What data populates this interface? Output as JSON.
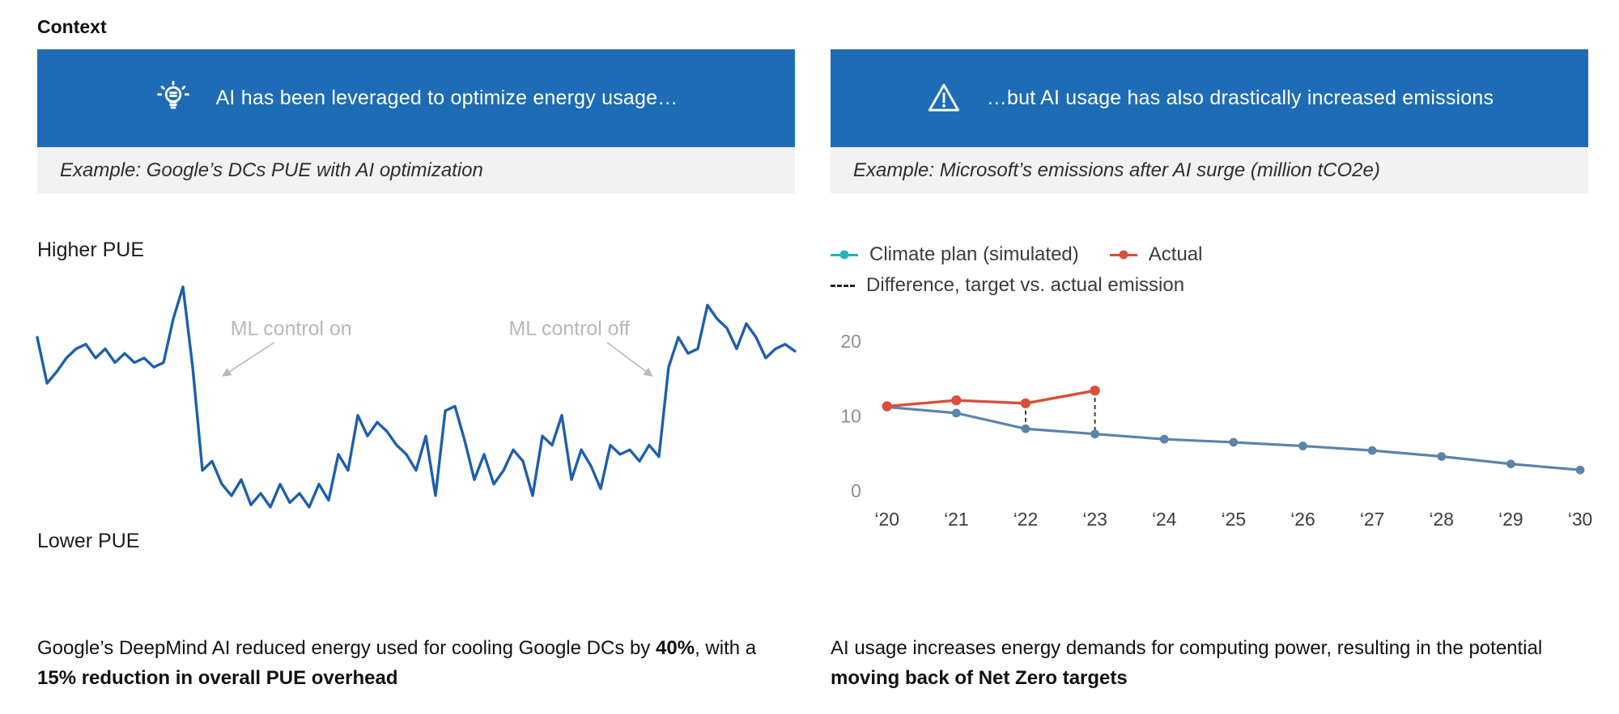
{
  "context_label": "Context",
  "colors": {
    "banner_blue": "#1e6cb5",
    "subtitle_gray": "#f2f2f2",
    "pue_line_blue": "#1d5fad",
    "plan_line_blue": "#5b84ab",
    "plan_legend_teal": "#27b4b4",
    "actual_red": "#d94f38",
    "annotation_gray": "#b8b8b8"
  },
  "left_panel": {
    "banner": "AI has been leveraged to optimize energy usage…",
    "banner_icon": "lightbulb-icon",
    "subtitle": "Example: Google’s DCs PUE with AI optimization",
    "axis_top_label": "Higher PUE",
    "axis_bottom_label": "Lower PUE",
    "caption": [
      "Google’s DeepMind AI reduced energy used for cooling Google DCs by ",
      "40%",
      ", with a ",
      "15% reduction in overall PUE overhead"
    ]
  },
  "right_panel": {
    "banner": "…but AI usage has also drastically increased emissions",
    "banner_icon": "warning-icon",
    "subtitle": "Example: Microsoft’s emissions after AI surge (million tCO2e)",
    "caption": [
      "AI usage increases energy demands for computing power, resulting in the potential ",
      "moving back of Net Zero targets"
    ]
  },
  "chart_data": [
    {
      "type": "line",
      "title": "Example: Google’s DCs PUE with AI optimization",
      "xlabel": "time (axis unlabeled)",
      "ylabel": "PUE (qualitative scale from Lower PUE to Higher PUE, no numeric ticks)",
      "ylim": [
        0,
        1
      ],
      "grid": false,
      "annotations": [
        "ML control on",
        "ML control off"
      ],
      "series": [
        {
          "name": "PUE",
          "color": "#1d5fad",
          "values": [
            0.77,
            0.57,
            0.62,
            0.68,
            0.72,
            0.74,
            0.68,
            0.72,
            0.66,
            0.7,
            0.66,
            0.68,
            0.64,
            0.66,
            0.85,
            0.99,
            0.64,
            0.19,
            0.23,
            0.13,
            0.08,
            0.15,
            0.04,
            0.09,
            0.03,
            0.13,
            0.05,
            0.09,
            0.03,
            0.13,
            0.06,
            0.26,
            0.19,
            0.43,
            0.34,
            0.4,
            0.36,
            0.3,
            0.26,
            0.19,
            0.34,
            0.08,
            0.45,
            0.47,
            0.32,
            0.15,
            0.26,
            0.13,
            0.19,
            0.28,
            0.23,
            0.08,
            0.34,
            0.3,
            0.43,
            0.15,
            0.28,
            0.21,
            0.11,
            0.3,
            0.26,
            0.28,
            0.23,
            0.3,
            0.25,
            0.64,
            0.77,
            0.7,
            0.72,
            0.91,
            0.85,
            0.81,
            0.72,
            0.83,
            0.77,
            0.68,
            0.72,
            0.74,
            0.71
          ]
        }
      ]
    },
    {
      "type": "line",
      "title": "Example: Microsoft’s emissions after AI surge (million tCO2e)",
      "categories": [
        "‘20",
        "‘21",
        "‘22",
        "‘23",
        "‘24",
        "‘25",
        "‘26",
        "‘27",
        "‘28",
        "‘29",
        "‘30"
      ],
      "ylim": [
        0,
        22
      ],
      "yticks": [
        0,
        10,
        20
      ],
      "grid": false,
      "legend_position": "top-left",
      "series": [
        {
          "name": "Climate plan (simulated)",
          "legend_color": "#27b4b4",
          "line_color": "#5b84ab",
          "values": [
            11.2,
            10.4,
            8.3,
            7.6,
            6.9,
            6.5,
            6.0,
            5.4,
            4.6,
            3.6,
            2.8
          ]
        },
        {
          "name": "Actual",
          "legend_color": "#d94f38",
          "line_color": "#d94f38",
          "values": [
            11.3,
            12.1,
            11.7,
            13.4
          ]
        }
      ],
      "difference": {
        "name": "Difference, target vs. actual emission",
        "style": "dashed",
        "at_categories": [
          "‘22",
          "‘23"
        ]
      }
    }
  ]
}
